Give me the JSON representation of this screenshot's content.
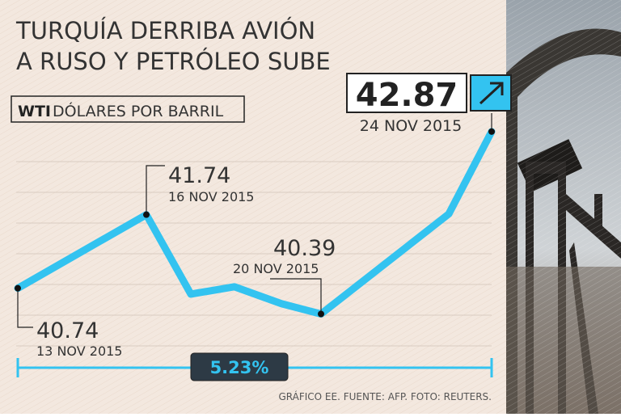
{
  "chart_data": {
    "type": "line",
    "title": "TURQUÍA DERRIBA AVIÓN A RUSO Y PETRÓLEO SUBE",
    "subtitle_logo": "WTI",
    "subtitle": "DÓLARES POR BARRIL",
    "categories": [
      "13 NOV 2015",
      "16 NOV 2015",
      null,
      null,
      null,
      "20 NOV 2015",
      null,
      "24 NOV 2015"
    ],
    "values": [
      40.74,
      41.74,
      40.66,
      40.76,
      40.53,
      40.39,
      41.75,
      42.87
    ],
    "color": "#33c3f0",
    "ylim": [
      40.0,
      43.0
    ],
    "change": 5.23,
    "change_label": "5.23%",
    "source": "GRÁFICO EE. FUENTE: AFP. FOTO: REUTERS."
  }
}
